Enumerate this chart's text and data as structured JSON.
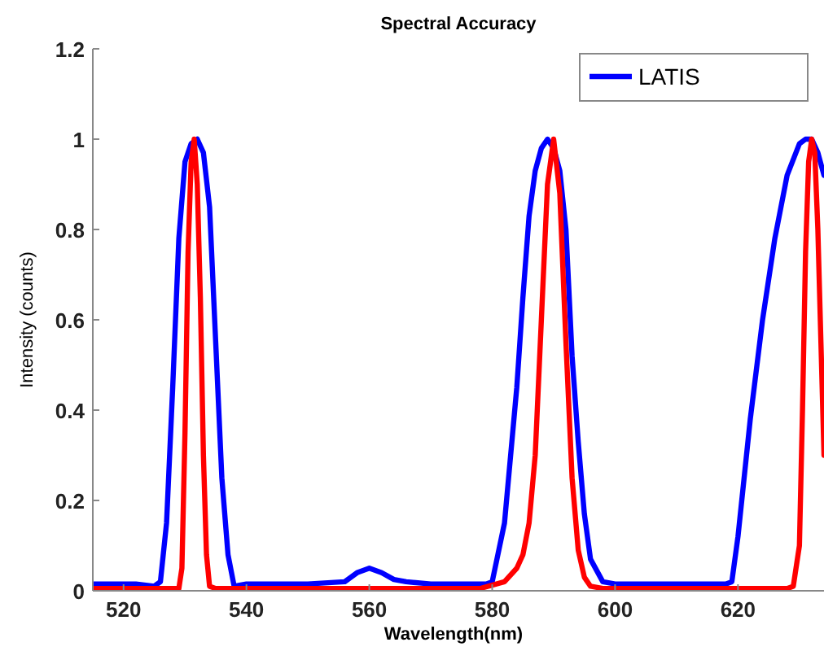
{
  "chart_data": {
    "type": "line",
    "title": "Spectral Accuracy",
    "xlabel": "Wavelength(nm)",
    "ylabel": "Intensity (counts)",
    "xlim": [
      515,
      634
    ],
    "ylim": [
      0,
      1.2
    ],
    "xticks": [
      520,
      540,
      560,
      580,
      600,
      620
    ],
    "yticks": [
      0,
      0.2,
      0.4,
      0.6,
      0.8,
      1,
      1.2
    ],
    "grid": false,
    "legend": "top right",
    "series": [
      {
        "name": "LATIS",
        "color": "#0000ff",
        "x": [
          515,
          522,
          525,
          526,
          527,
          528,
          529,
          530,
          531,
          532,
          533,
          534,
          535,
          536,
          537,
          538,
          540,
          550,
          556,
          558,
          560,
          562,
          564,
          566,
          570,
          579,
          580,
          582,
          584,
          585,
          586,
          587,
          588,
          589,
          590,
          591,
          592,
          593,
          594,
          595,
          596,
          598,
          600,
          610,
          618,
          619,
          620,
          622,
          624,
          626,
          628,
          630,
          631,
          632,
          633,
          634
        ],
        "values": [
          0.015,
          0.015,
          0.01,
          0.02,
          0.15,
          0.45,
          0.78,
          0.95,
          0.99,
          1,
          0.97,
          0.85,
          0.55,
          0.25,
          0.08,
          0.01,
          0.015,
          0.015,
          0.02,
          0.04,
          0.05,
          0.04,
          0.025,
          0.02,
          0.015,
          0.015,
          0.02,
          0.15,
          0.45,
          0.65,
          0.83,
          0.93,
          0.98,
          1,
          0.98,
          0.93,
          0.8,
          0.52,
          0.33,
          0.17,
          0.07,
          0.02,
          0.015,
          0.015,
          0.015,
          0.02,
          0.12,
          0.38,
          0.6,
          0.78,
          0.92,
          0.99,
          1,
          1,
          0.97,
          0.92
        ]
      },
      {
        "color": "#ff0000",
        "x": [
          515,
          529,
          529.5,
          530,
          530.5,
          531,
          531.5,
          532,
          532.5,
          533,
          533.5,
          534,
          535,
          560,
          578,
          582,
          584,
          585,
          586,
          587,
          588,
          589,
          590,
          591,
          592,
          593,
          594,
          595,
          596,
          598,
          620,
          628,
          629,
          630,
          630.5,
          631,
          631.5,
          632,
          632.5,
          633,
          633.5,
          634
        ],
        "values": [
          0.005,
          0.005,
          0.05,
          0.35,
          0.75,
          0.95,
          1,
          0.9,
          0.65,
          0.3,
          0.08,
          0.01,
          0.005,
          0.005,
          0.005,
          0.02,
          0.05,
          0.08,
          0.15,
          0.3,
          0.6,
          0.9,
          1,
          0.88,
          0.55,
          0.25,
          0.09,
          0.03,
          0.01,
          0.005,
          0.005,
          0.005,
          0.01,
          0.1,
          0.4,
          0.75,
          0.95,
          1,
          0.97,
          0.8,
          0.55,
          0.3
        ]
      }
    ]
  }
}
